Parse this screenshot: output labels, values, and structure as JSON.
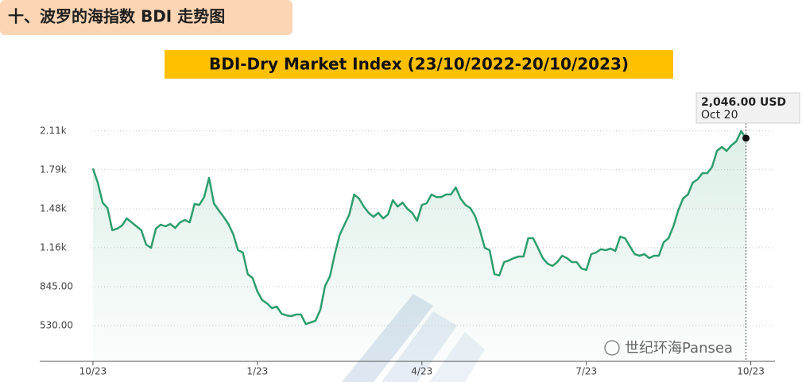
{
  "header": "十、波罗的海指数 BDI 走势图",
  "watermark": "世纪环海Pansea",
  "chart_data": {
    "type": "line",
    "title": "BDI-Dry Market Index (23/10/2022-20/10/2023)",
    "annotations": [
      "2,046.00 USD",
      "Oct 20"
    ],
    "series": [
      {
        "name": "BDI",
        "color": "#2e9e6e",
        "values": [
          1801,
          1686,
          1525,
          1481,
          1301,
          1314,
          1339,
          1397,
          1365,
          1333,
          1301,
          1185,
          1159,
          1314,
          1346,
          1333,
          1352,
          1320,
          1365,
          1384,
          1365,
          1513,
          1506,
          1570,
          1725,
          1519,
          1461,
          1410,
          1352,
          1269,
          1140,
          1121,
          947,
          915,
          806,
          736,
          710,
          671,
          684,
          626,
          613,
          607,
          620,
          620,
          543,
          556,
          569,
          658,
          851,
          928,
          1108,
          1262,
          1346,
          1429,
          1590,
          1558,
          1493,
          1442,
          1410,
          1442,
          1397,
          1429,
          1545,
          1493,
          1525,
          1474,
          1442,
          1378,
          1506,
          1519,
          1590,
          1570,
          1570,
          1590,
          1590,
          1648,
          1558,
          1506,
          1481,
          1416,
          1301,
          1159,
          1140,
          947,
          935,
          1044,
          1057,
          1076,
          1089,
          1089,
          1237,
          1237,
          1159,
          1076,
          1031,
          1012,
          1044,
          1095,
          1076,
          1044,
          1044,
          992,
          980,
          1108,
          1121,
          1147,
          1140,
          1153,
          1134,
          1249,
          1237,
          1172,
          1108,
          1095,
          1108,
          1076,
          1095,
          1095,
          1204,
          1237,
          1333,
          1461,
          1558,
          1590,
          1686,
          1712,
          1763,
          1763,
          1814,
          1943,
          1975,
          1943,
          1988,
          2020,
          2103,
          2046
        ]
      }
    ],
    "xlim": [
      -11,
      141
    ],
    "xticks": [
      {
        "value": 0,
        "label": "10/23"
      },
      {
        "value": 34,
        "label": "1/23"
      },
      {
        "value": 68,
        "label": "4/23"
      },
      {
        "value": 102,
        "label": "7/23"
      },
      {
        "value": 136,
        "label": "10/23"
      }
    ],
    "ylim": [
      241,
      2264
    ],
    "yticks": [
      {
        "value": 530,
        "label": "530.00"
      },
      {
        "value": 845,
        "label": "845.00"
      },
      {
        "value": 1160,
        "label": "1.16k"
      },
      {
        "value": 1475,
        "label": "1.48k"
      },
      {
        "value": 1790,
        "label": "1.79k"
      },
      {
        "value": 2105,
        "label": "2.11k"
      }
    ],
    "grid": true
  }
}
